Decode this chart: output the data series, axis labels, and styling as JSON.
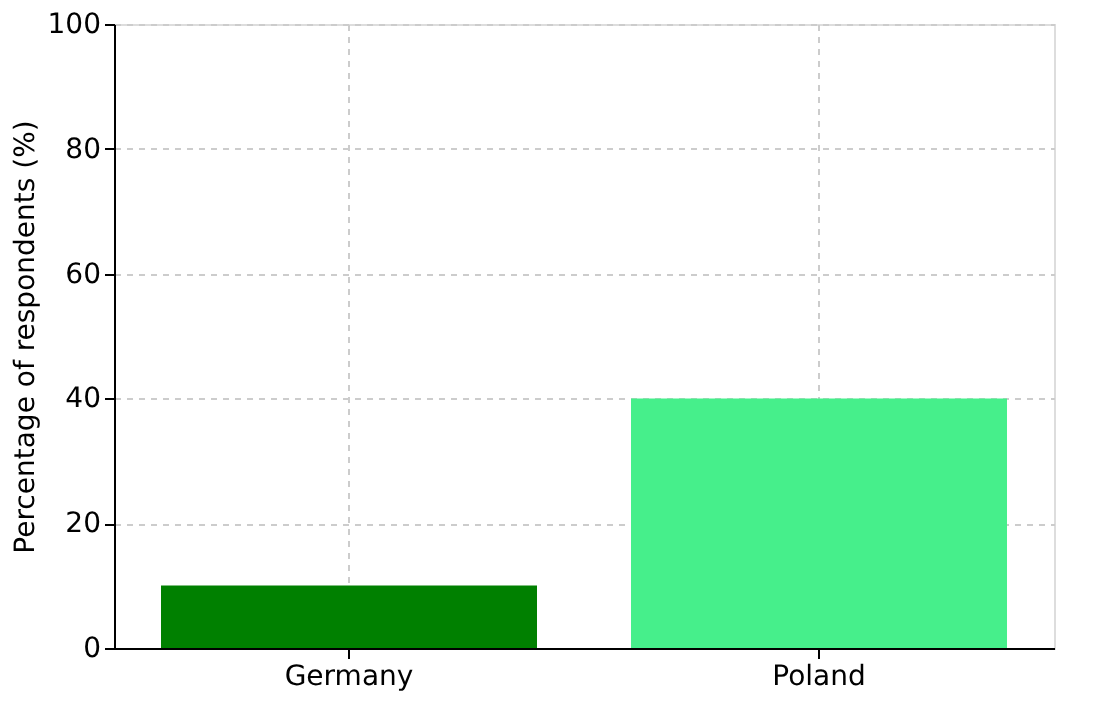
{
  "chart_data": {
    "type": "bar",
    "ylabel": "Percentage of respondents (%)",
    "categories": [
      "Germany",
      "Poland"
    ],
    "values": [
      10,
      40
    ],
    "colors": [
      "#008000",
      "#46ef8b"
    ],
    "ylim": [
      0,
      100
    ],
    "yticks": [
      0,
      20,
      40,
      60,
      80,
      100
    ],
    "grid": true
  }
}
